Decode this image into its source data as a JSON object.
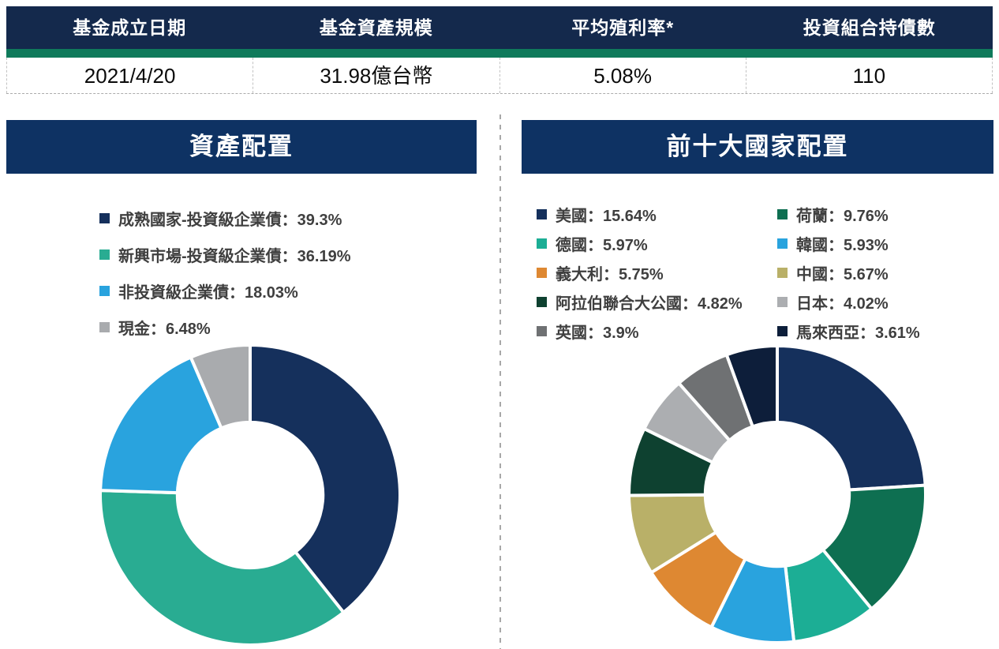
{
  "info_table": {
    "header_bg": "#14294C",
    "header_text_color": "#FFFFFF",
    "accent_strip_color": "#0F7A5B",
    "columns": [
      {
        "header": "基金成立日期",
        "value": "2021/4/20"
      },
      {
        "header": "基金資產規模",
        "value": "31.98億台幣"
      },
      {
        "header": "平均殖利率*",
        "value": "5.08%"
      },
      {
        "header": "投資組合持債數",
        "value": "110"
      }
    ]
  },
  "legend_separator": "：",
  "percent_suffix": "%",
  "chart_data": [
    {
      "type": "pie",
      "donut": true,
      "title": "資產配置",
      "title_bg": "#0E3263",
      "labels": [
        "成熟國家-投資級企業債",
        "新興市場-投資級企業債",
        "非投資級企業債",
        "現金"
      ],
      "values": [
        39.3,
        36.19,
        18.03,
        6.48
      ],
      "display_values": [
        "39.3",
        "36.19",
        "18.03",
        "6.48"
      ],
      "colors": [
        "#15305C",
        "#29AC92",
        "#29A3DE",
        "#A9ABAE"
      ],
      "start_angle_deg": -90,
      "direction": "clockwise",
      "inner_ratio": 0.485,
      "legend_position": "above",
      "legend_columns": 1
    },
    {
      "type": "pie",
      "donut": true,
      "title": "前十大國家配置",
      "title_bg": "#0E3263",
      "labels": [
        "美國",
        "荷蘭",
        "德國",
        "韓國",
        "義大利",
        "中國",
        "阿拉伯聯合大公國",
        "日本",
        "英國",
        "馬來西亞"
      ],
      "values": [
        15.64,
        9.76,
        5.97,
        5.93,
        5.75,
        5.67,
        4.82,
        4.02,
        3.9,
        3.61
      ],
      "display_values": [
        "15.64",
        "9.76",
        "5.97",
        "5.93",
        "5.75",
        "5.67",
        "4.82",
        "4.02",
        "3.9",
        "3.61"
      ],
      "colors": [
        "#15305C",
        "#0E6F51",
        "#1CAE95",
        "#29A3DE",
        "#DE8832",
        "#B9B068",
        "#0E4130",
        "#ACAEB1",
        "#6F7173",
        "#0D1E3A"
      ],
      "start_angle_deg": -90,
      "direction": "clockwise",
      "inner_ratio": 0.485,
      "legend_position": "above",
      "legend_columns": 2
    }
  ]
}
